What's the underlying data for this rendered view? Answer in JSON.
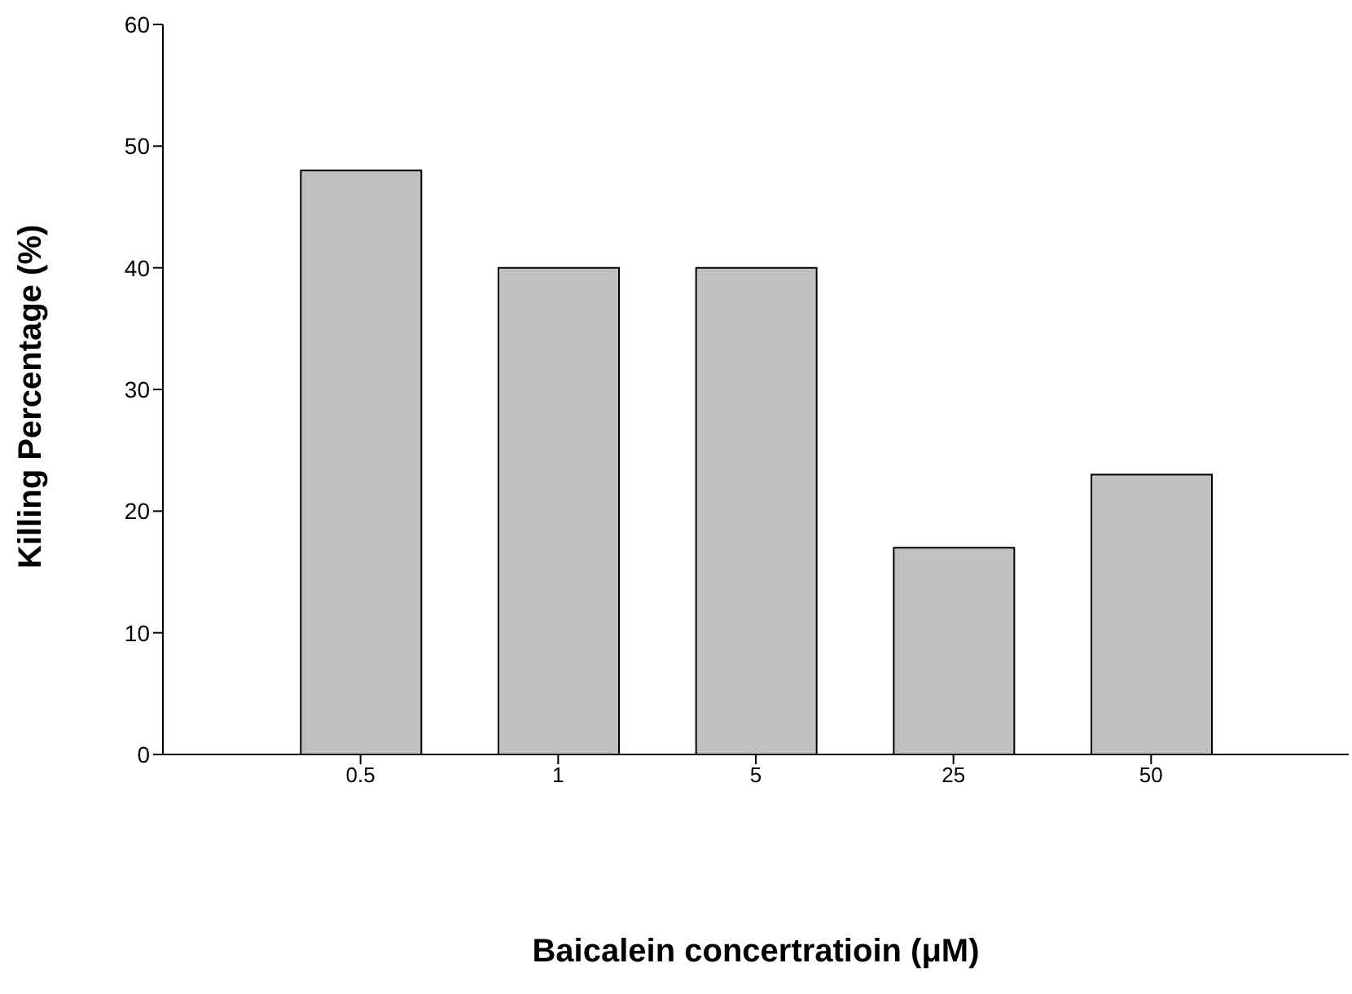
{
  "chart_data": {
    "type": "bar",
    "xlabel": "Baicalein concertratioin (μM)",
    "ylabel": "Killing Percentage (%)",
    "categories": [
      "0.5",
      "1",
      "5",
      "25",
      "50"
    ],
    "values": [
      48,
      40,
      40,
      17,
      23
    ],
    "color": "#c0c0c0",
    "ylim": [
      0,
      60
    ],
    "yticks": [
      0,
      10,
      20,
      30,
      40,
      50,
      60
    ],
    "grid": false
  }
}
